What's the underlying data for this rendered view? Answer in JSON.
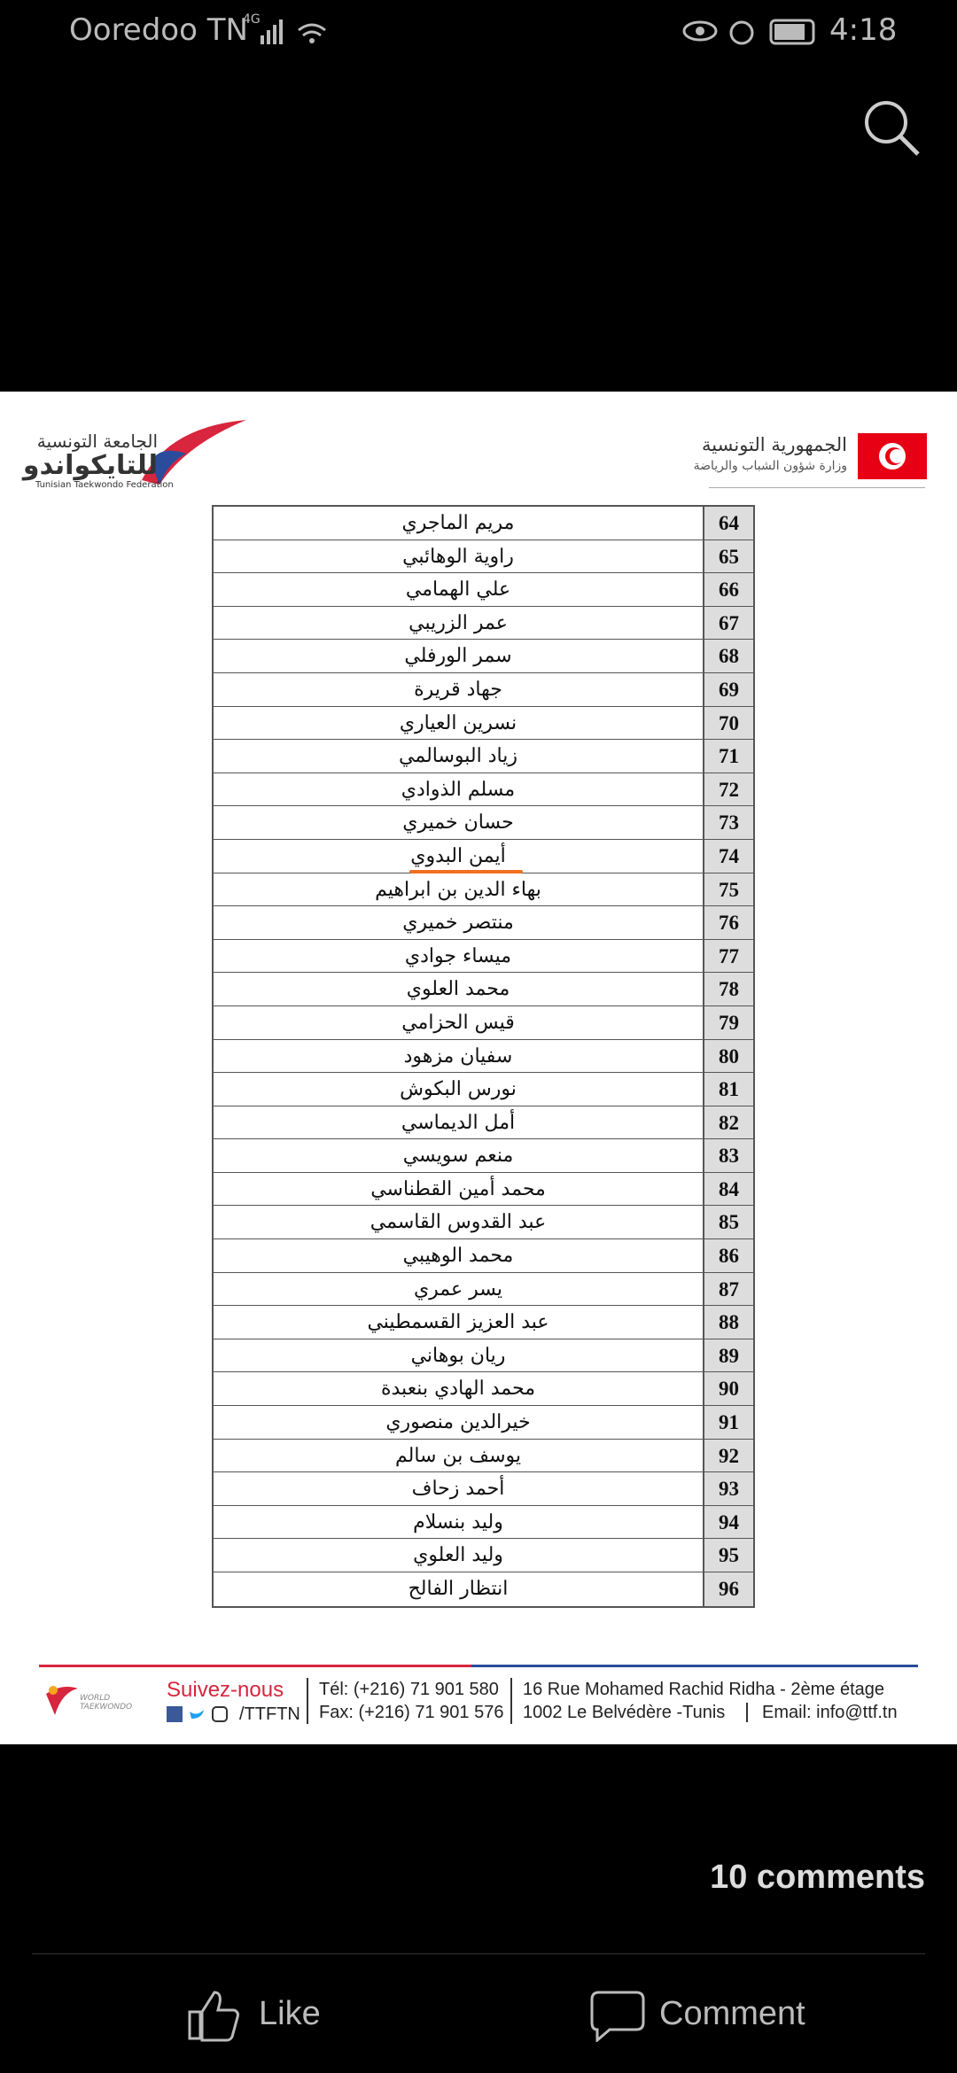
{
  "status_bar": {
    "carrier": "Ooredoo TN",
    "network": "4G",
    "time": "4:18"
  },
  "header": {
    "federation_ar_1": "الجامعة التونسية",
    "federation_ar_2": "للتايكواندو",
    "federation_en": "Tunisian Taekwondo Federation",
    "republic": "الجمهورية التونسية",
    "ministry": "وزارة شؤون الشباب والرياضة"
  },
  "table": {
    "rows": [
      [
        64,
        "مريم الماجري"
      ],
      [
        65,
        "راوية الوهائبي"
      ],
      [
        66,
        "علي الهمامي"
      ],
      [
        67,
        "عمر الزريبي"
      ],
      [
        68,
        "سمر الورفلي"
      ],
      [
        69,
        "جهاد قريرة"
      ],
      [
        70,
        "نسرين العياري"
      ],
      [
        71,
        "زياد البوسالمي"
      ],
      [
        72,
        "مسلم الذوادي"
      ],
      [
        73,
        "حسان خميري"
      ],
      [
        74,
        "أيمن البدوي"
      ],
      [
        75,
        "بهاء الدين بن ابراهيم"
      ],
      [
        76,
        "منتصر خميري"
      ],
      [
        77,
        "ميساء جوادي"
      ],
      [
        78,
        "محمد العلوي"
      ],
      [
        79,
        "قيس الحزامي"
      ],
      [
        80,
        "سفيان مزهود"
      ],
      [
        81,
        "نورس البكوش"
      ],
      [
        82,
        "أمل الديماسي"
      ],
      [
        83,
        "منعم سويسي"
      ],
      [
        84,
        "محمد أمين القطناسي"
      ],
      [
        85,
        "عبد القدوس القاسمي"
      ],
      [
        86,
        "محمد الوهيبي"
      ],
      [
        87,
        "يسر عمري"
      ],
      [
        88,
        "عبد العزيز القسمطيني"
      ],
      [
        89,
        "ريان بوهاني"
      ],
      [
        90,
        "محمد الهادي بنعبدة"
      ],
      [
        91,
        "خيرالدين منصوري"
      ],
      [
        92,
        "يوسف بن سالم"
      ],
      [
        93,
        "أحمد زحاف"
      ],
      [
        94,
        "وليد بنسلام"
      ],
      [
        95,
        "وليد العلوي"
      ],
      [
        96,
        "انتظار الفالح"
      ]
    ]
  },
  "footer": {
    "logo": "WORLD TAEKWONDO",
    "follow": "Suivez-nous",
    "handle": "/TTFTN",
    "tel": "Tél: (+216) 71 901 580",
    "fax": "Fax: (+216) 71 901 576",
    "address_1": "16 Rue Mohamed Rachid Ridha - 2ème étage",
    "address_2": "1002 Le Belvédère  -Tunis",
    "email": "Email: info@ttf.tn"
  },
  "comments_count": "10 comments",
  "actions": {
    "like": "Like",
    "comment": "Comment"
  }
}
